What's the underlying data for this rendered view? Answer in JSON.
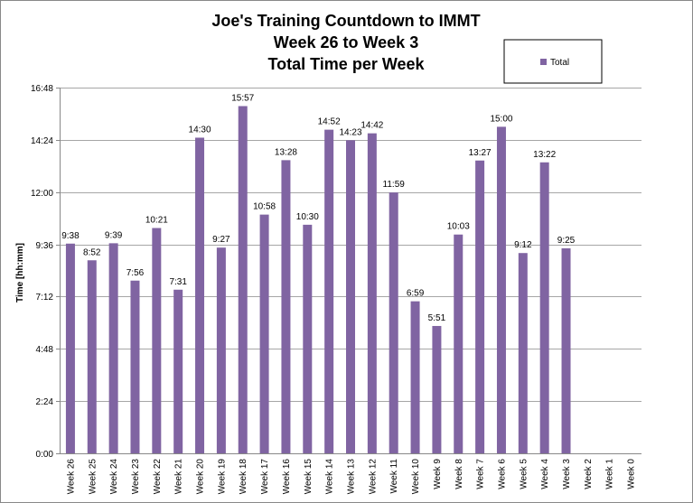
{
  "chart_data": {
    "type": "bar",
    "title_lines": [
      "Joe's Training Countdown to IMMT",
      "Week 26 to Week 3",
      "Total Time per Week"
    ],
    "ylabel": "Time [hh:mm]",
    "xlabel": "",
    "y_unit": "minutes",
    "ylim": [
      0,
      1008
    ],
    "y_ticks": [
      0,
      144,
      288,
      432,
      576,
      720,
      864,
      1008
    ],
    "y_tick_labels": [
      "0:00",
      "2:24",
      "4:48",
      "7:12",
      "9:36",
      "12:00",
      "14:24",
      "16:48"
    ],
    "grid": true,
    "legend_position": "top-right",
    "categories": [
      "Week 26",
      "Week 25",
      "Week 24",
      "Week 23",
      "Week 22",
      "Week 21",
      "Week 20",
      "Week 19",
      "Week 18",
      "Week 17",
      "Week 16",
      "Week 15",
      "Week 14",
      "Week 13",
      "Week 12",
      "Week 11",
      "Week 10",
      "Week 9",
      "Week 8",
      "Week 7",
      "Week 6",
      "Week 5",
      "Week 4",
      "Week 3",
      "Week 2",
      "Week 1",
      "Week 0"
    ],
    "series": [
      {
        "name": "Total",
        "color": "#8064A2",
        "values": [
          578,
          532,
          579,
          476,
          621,
          451,
          870,
          567,
          957,
          658,
          808,
          630,
          892,
          863,
          882,
          719,
          419,
          351,
          603,
          807,
          900,
          552,
          802,
          565,
          null,
          null,
          null
        ],
        "data_labels": [
          "9:38",
          "8:52",
          "9:39",
          "7:56",
          "10:21",
          "7:31",
          "14:30",
          "9:27",
          "15:57",
          "10:58",
          "13:28",
          "10:30",
          "14:52",
          "14:23",
          "14:42",
          "11:59",
          "6:59",
          "5:51",
          "10:03",
          "13:27",
          "15:00",
          "9:12",
          "13:22",
          "9:25",
          "",
          "",
          ""
        ]
      }
    ]
  }
}
